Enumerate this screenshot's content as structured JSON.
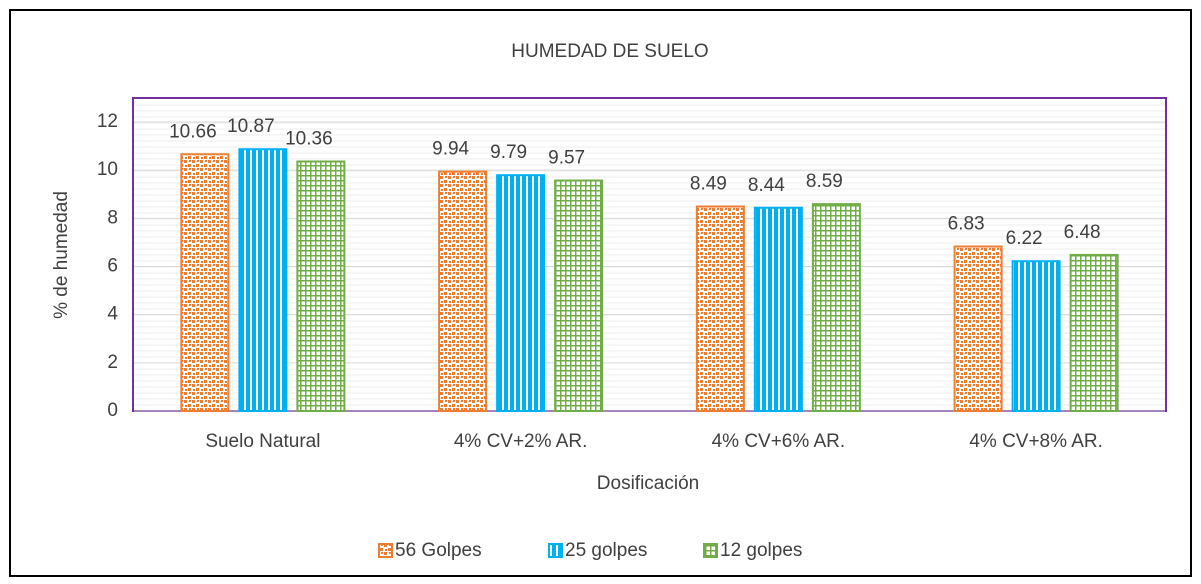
{
  "chart_data": {
    "type": "bar",
    "title": "HUMEDAD  DE SUELO",
    "x_label": "Dosificación",
    "y_label": "% de humedad",
    "categories": [
      "Suelo Natural",
      "4% CV+2% AR.",
      "4% CV+6% AR.",
      "4% CV+8% AR."
    ],
    "series": [
      {
        "name": "56 Golpes",
        "color": "#ed7d31",
        "values": [
          10.66,
          9.94,
          8.49,
          6.83
        ]
      },
      {
        "name": "25 golpes",
        "color": "#00b0f0",
        "values": [
          10.87,
          9.79,
          8.44,
          6.22
        ]
      },
      {
        "name": "12 golpes",
        "color": "#70ad47",
        "values": [
          10.36,
          9.57,
          8.59,
          6.48
        ]
      }
    ],
    "ylim": [
      0,
      12
    ],
    "yticks": [
      0,
      2,
      4,
      6,
      8,
      10,
      12
    ],
    "grid": true,
    "legend": "bottom"
  }
}
